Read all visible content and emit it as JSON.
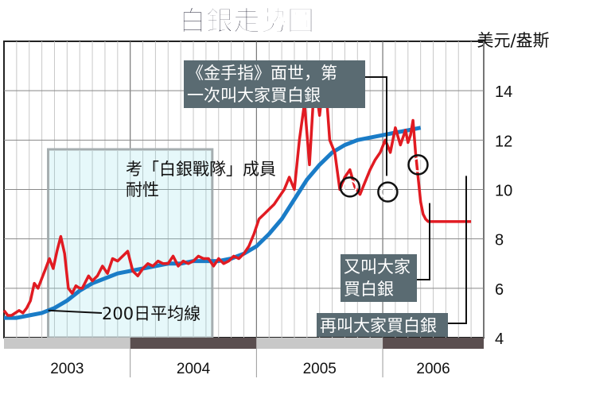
{
  "title": "白銀走勢圖",
  "colors": {
    "price": "#e11b22",
    "ma": "#1a7cc7",
    "callout_bg": "#5a6b72",
    "shade_fill": "#e2f7f9",
    "shade_border": "#a6aeb0",
    "axis_bar_light": "#c8c8c8",
    "axis_bar_dark": "#5a4e4f"
  },
  "chart_data": {
    "type": "line",
    "ylabel": "美元/盎斯",
    "ylim": [
      4,
      16
    ],
    "yticks": [
      4,
      6,
      8,
      10,
      12,
      14
    ],
    "xlim": [
      2003.0,
      2006.8
    ],
    "years": [
      "2003",
      "2004",
      "2005",
      "2006"
    ],
    "shaded_region": {
      "x_start": 2003.35,
      "x_end": 2004.65,
      "label": "考「白銀戰隊」成員耐性"
    },
    "series": [
      {
        "name": "price",
        "x": [
          2003.0,
          2003.03,
          2003.06,
          2003.09,
          2003.12,
          2003.15,
          2003.18,
          2003.21,
          2003.24,
          2003.27,
          2003.3,
          2003.33,
          2003.36,
          2003.39,
          2003.42,
          2003.45,
          2003.48,
          2003.51,
          2003.54,
          2003.57,
          2003.6,
          2003.62,
          2003.64,
          2003.67,
          2003.7,
          2003.74,
          2003.78,
          2003.82,
          2003.86,
          2003.9,
          2003.94,
          2003.98,
          2004.02,
          2004.06,
          2004.1,
          2004.14,
          2004.18,
          2004.22,
          2004.26,
          2004.3,
          2004.34,
          2004.38,
          2004.42,
          2004.46,
          2004.5,
          2004.54,
          2004.58,
          2004.62,
          2004.66,
          2004.7,
          2004.74,
          2004.78,
          2004.82,
          2004.86,
          2004.9,
          2004.94,
          2004.98,
          2005.02,
          2005.06,
          2005.1,
          2005.14,
          2005.18,
          2005.22,
          2005.26,
          2005.3,
          2005.34,
          2005.38,
          2005.42,
          2005.46,
          2005.5,
          2005.54,
          2005.58,
          2005.62,
          2005.66,
          2005.7,
          2005.74,
          2005.78,
          2005.82,
          2005.86,
          2005.9,
          2005.94,
          2005.98,
          2006.02,
          2006.06,
          2006.1,
          2006.14,
          2006.18,
          2006.2,
          2006.22,
          2006.24,
          2006.26,
          2006.28,
          2006.3,
          2006.32,
          2006.34,
          2006.36,
          2006.38,
          2006.4,
          2006.42,
          2006.44,
          2006.46,
          2006.48,
          2006.5,
          2006.52,
          2006.54,
          2006.56,
          2006.58,
          2006.6,
          2006.62,
          2006.64,
          2006.66,
          2006.68,
          2006.7
        ],
        "values": [
          5.1,
          4.9,
          4.9,
          5.0,
          5.1,
          5.0,
          5.2,
          5.5,
          6.2,
          6.0,
          6.4,
          6.8,
          7.2,
          6.8,
          7.5,
          8.1,
          7.4,
          6.0,
          5.8,
          6.1,
          6.0,
          6.0,
          6.2,
          6.5,
          6.3,
          6.5,
          6.9,
          6.6,
          7.2,
          7.1,
          7.3,
          7.5,
          6.7,
          6.5,
          6.8,
          7.0,
          6.9,
          7.1,
          7.0,
          7.0,
          7.3,
          6.9,
          7.1,
          7.0,
          7.1,
          7.3,
          7.2,
          7.2,
          6.9,
          7.2,
          7.0,
          7.1,
          7.3,
          7.2,
          7.4,
          7.7,
          8.2,
          8.8,
          9.0,
          9.2,
          9.4,
          9.7,
          10.0,
          10.5,
          10.0,
          12.0,
          13.5,
          11.0,
          14.5,
          13.0,
          14.8,
          12.0,
          11.5,
          10.0,
          10.5,
          10.8,
          10.1,
          9.8,
          10.3,
          10.8,
          11.2,
          11.5,
          12.0,
          11.5,
          12.5,
          11.8,
          12.4,
          11.9,
          12.2,
          12.8,
          11.5,
          10.5,
          9.5,
          9.0,
          8.8,
          8.7,
          8.7,
          8.7,
          8.7,
          8.7,
          8.7,
          8.7,
          8.7,
          8.7,
          8.7,
          8.7,
          8.7,
          8.7,
          8.7,
          8.7,
          8.7,
          8.7,
          8.7
        ]
      },
      {
        "name": "200日平均線",
        "x": [
          2003.0,
          2003.1,
          2003.2,
          2003.3,
          2003.4,
          2003.5,
          2003.6,
          2003.7,
          2003.8,
          2003.9,
          2004.0,
          2004.1,
          2004.2,
          2004.3,
          2004.4,
          2004.5,
          2004.6,
          2004.7,
          2004.8,
          2004.9,
          2005.0,
          2005.1,
          2005.2,
          2005.3,
          2005.4,
          2005.5,
          2005.6,
          2005.7,
          2005.8,
          2005.9,
          2006.0,
          2006.1,
          2006.2,
          2006.3
        ],
        "values": [
          4.8,
          4.8,
          4.9,
          5.0,
          5.2,
          5.5,
          5.9,
          6.2,
          6.4,
          6.6,
          6.7,
          6.8,
          6.9,
          7.0,
          7.0,
          7.1,
          7.1,
          7.1,
          7.2,
          7.4,
          7.7,
          8.2,
          8.8,
          9.6,
          10.4,
          11.0,
          11.5,
          11.8,
          12.0,
          12.1,
          12.2,
          12.3,
          12.4,
          12.5
        ]
      }
    ],
    "annotations": [
      {
        "text_lines": [
          "《金手指》面世，第",
          "一次叫大家買白銀"
        ],
        "x": 2005.74,
        "y": 10.1
      },
      {
        "text_lines": [
          "又叫大家",
          "買白銀"
        ],
        "x": 2006.04,
        "y": 9.9
      },
      {
        "text_lines": [
          "再叫大家買白銀"
        ],
        "x": 2006.28,
        "y": 11.0
      }
    ],
    "ma_label": "200日平均線"
  }
}
